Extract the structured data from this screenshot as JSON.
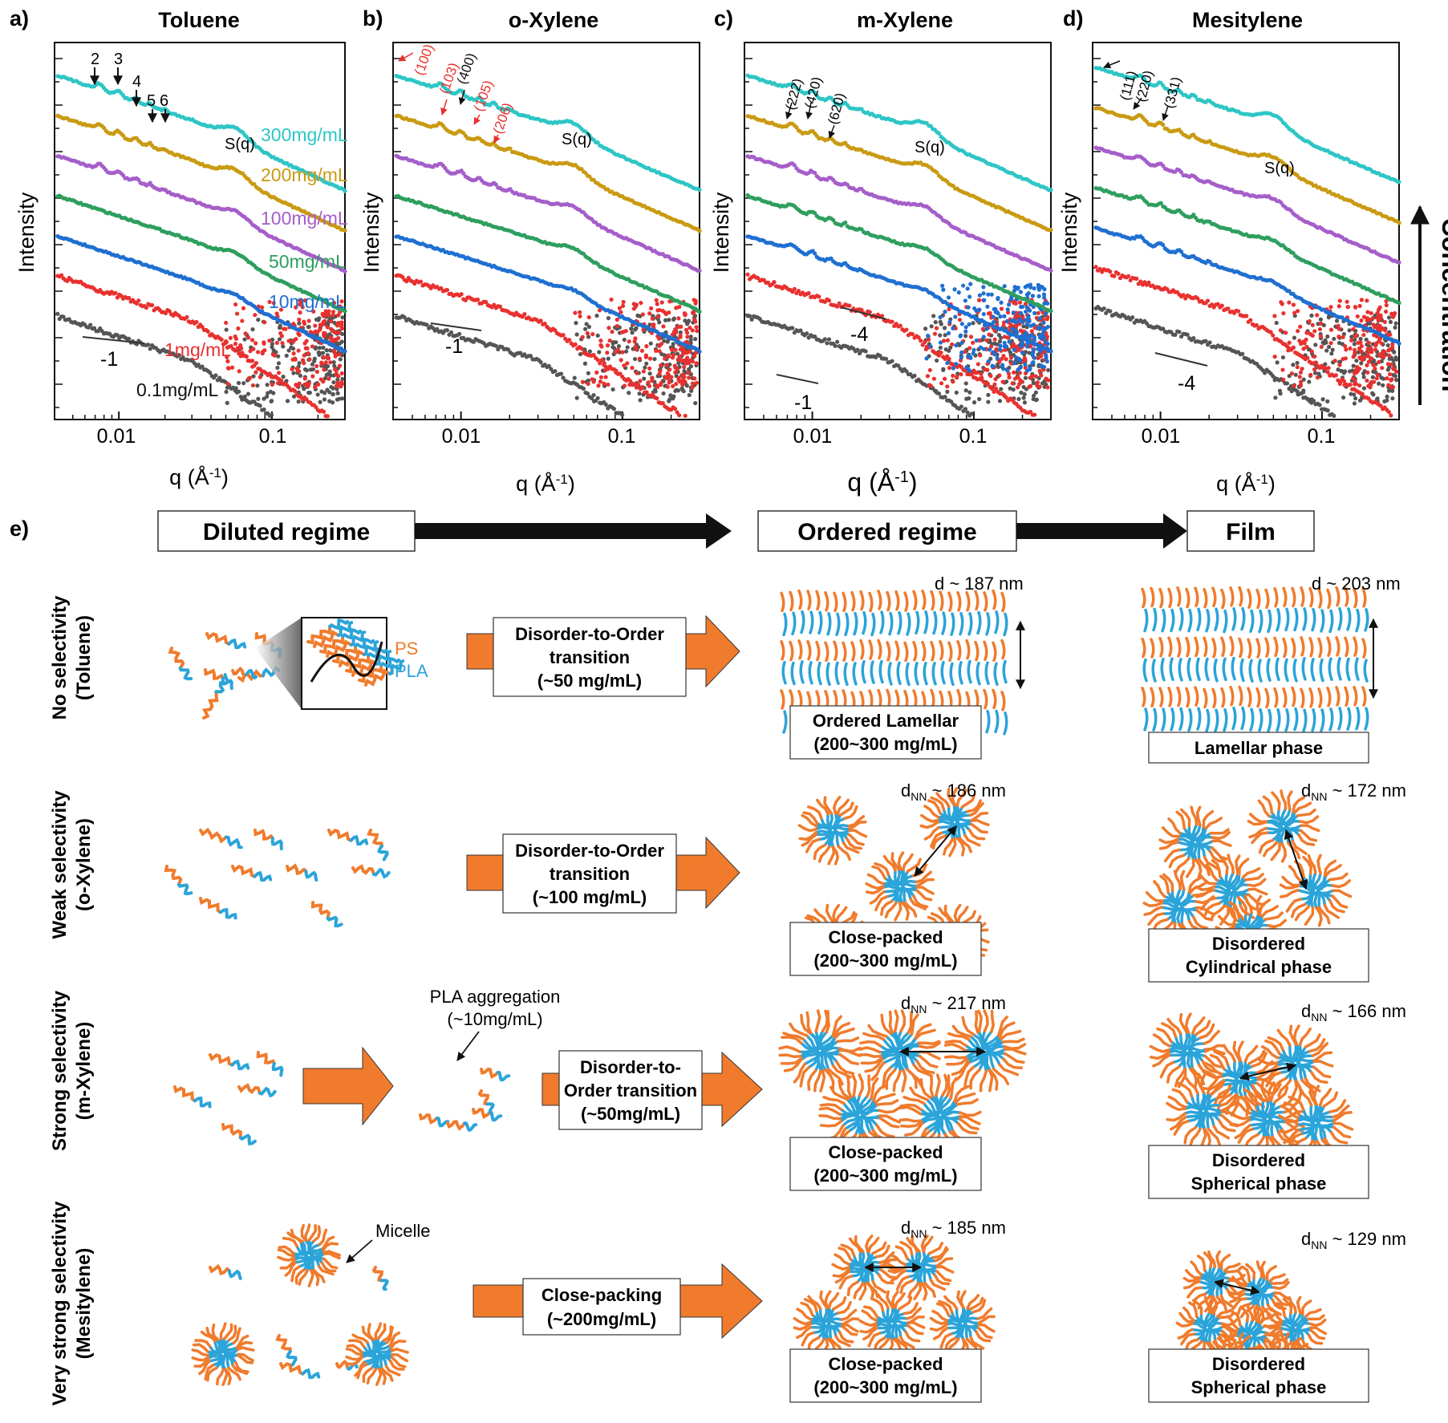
{
  "chart_data": [
    {
      "type": "scatter",
      "panel": "a)",
      "title": "Toluene",
      "xlabel": "q (Å-1)",
      "ylabel": "Intensity",
      "xscale": "log",
      "xlim": [
        0.004,
        0.28
      ],
      "xticks": [
        "0.01",
        "0.1"
      ],
      "series": [
        {
          "name": "0.1mg/mL",
          "color": "#555555"
        },
        {
          "name": "1mg/mL",
          "color": "#e8312f"
        },
        {
          "name": "10mg/mL",
          "color": "#1f6fd1"
        },
        {
          "name": "50mg/mL",
          "color": "#2e9e5e"
        },
        {
          "name": "100mg/mL",
          "color": "#a55ec9"
        },
        {
          "name": "200mg/mL",
          "color": "#c99a12"
        },
        {
          "name": "300mg/mL",
          "color": "#2ec5c5"
        }
      ],
      "annotations": [
        "2",
        "3",
        "4",
        "5",
        "6",
        "S(q)",
        "-1"
      ]
    },
    {
      "type": "scatter",
      "panel": "b)",
      "title": "o-Xylene",
      "xlabel": "q (Å-1)",
      "ylabel": "Intensity",
      "xscale": "log",
      "xticks": [
        "0.01",
        "0.1"
      ],
      "annotations": [
        "(100)",
        "(103)",
        "(400)",
        "(105)",
        "(206)",
        "S(q)",
        "-1"
      ]
    },
    {
      "type": "scatter",
      "panel": "c)",
      "title": "m-Xylene",
      "xlabel": "q (Å-1)",
      "ylabel": "Intensity",
      "xscale": "log",
      "xticks": [
        "0.01",
        "0.1"
      ],
      "annotations": [
        "(222)",
        "(420)",
        "(620)",
        "S(q)",
        "-4",
        "-1"
      ]
    },
    {
      "type": "scatter",
      "panel": "d)",
      "title": "Mesitylene",
      "xlabel": "q (Å-1)",
      "ylabel": "Intensity",
      "xscale": "log",
      "xticks": [
        "0.01",
        "0.1"
      ],
      "annotations": [
        "(111)",
        "(220)",
        "(331)",
        "S(q)",
        "-4"
      ]
    }
  ],
  "side_label": "Concentration",
  "panel_e": {
    "label": "e)",
    "regimes": [
      "Diluted regime",
      "Ordered regime",
      "Film"
    ],
    "legend": {
      "ps": "PS",
      "pla": "PLA"
    },
    "rows": [
      {
        "title": "No selectivity",
        "solvent": "(Toluene)",
        "transition": [
          "Disorder-to-Order",
          "transition",
          "(~50 mg/mL)"
        ],
        "ordered_d": "d ~ 187 nm",
        "ordered_box": [
          "Ordered Lamellar",
          "(200~300 mg/mL)"
        ],
        "film_d": "d ~ 203 nm",
        "film_box": [
          "Lamellar phase"
        ]
      },
      {
        "title": "Weak selectivity",
        "solvent": "(o-Xylene)",
        "transition": [
          "Disorder-to-Order",
          "transition",
          "(~100 mg/mL)"
        ],
        "ordered_d_pre": "d",
        "ordered_d_sub": "NN",
        "ordered_d_post": " ~ 186 nm",
        "ordered_box": [
          "Close-packed",
          "(200~300 mg/mL)"
        ],
        "film_d_pre": "d",
        "film_d_sub": "NN",
        "film_d_post": " ~ 172 nm",
        "film_box": [
          "Disordered",
          "Cylindrical phase"
        ]
      },
      {
        "title": "Strong selectivity",
        "solvent": "(m-Xylene)",
        "aggregation": [
          "PLA aggregation",
          "(~10mg/mL)"
        ],
        "transition": [
          "Disorder-to-",
          "Order transition",
          "(~50mg/mL)"
        ],
        "ordered_d_pre": "d",
        "ordered_d_sub": "NN",
        "ordered_d_post": " ~ 217 nm",
        "ordered_box": [
          "Close-packed",
          "(200~300 mg/mL)"
        ],
        "film_d_pre": "d",
        "film_d_sub": "NN",
        "film_d_post": " ~ 166 nm",
        "film_box": [
          "Disordered",
          "Spherical phase"
        ]
      },
      {
        "title": "Very strong selectivity",
        "solvent": "(Mesitylene)",
        "micelle": "Micelle",
        "transition": [
          "Close-packing",
          "(~200mg/mL)"
        ],
        "ordered_d_pre": "d",
        "ordered_d_sub": "NN",
        "ordered_d_post": " ~ 185 nm",
        "ordered_box": [
          "Close-packed",
          "(200~300 mg/mL)"
        ],
        "film_d_pre": "d",
        "film_d_sub": "NN",
        "film_d_post": " ~ 129 nm",
        "film_box": [
          "Disordered",
          "Spherical phase"
        ]
      }
    ]
  },
  "colors": {
    "ps": "#f07b2c",
    "pla": "#2ba4d9",
    "arrow": "#f07b2c"
  }
}
